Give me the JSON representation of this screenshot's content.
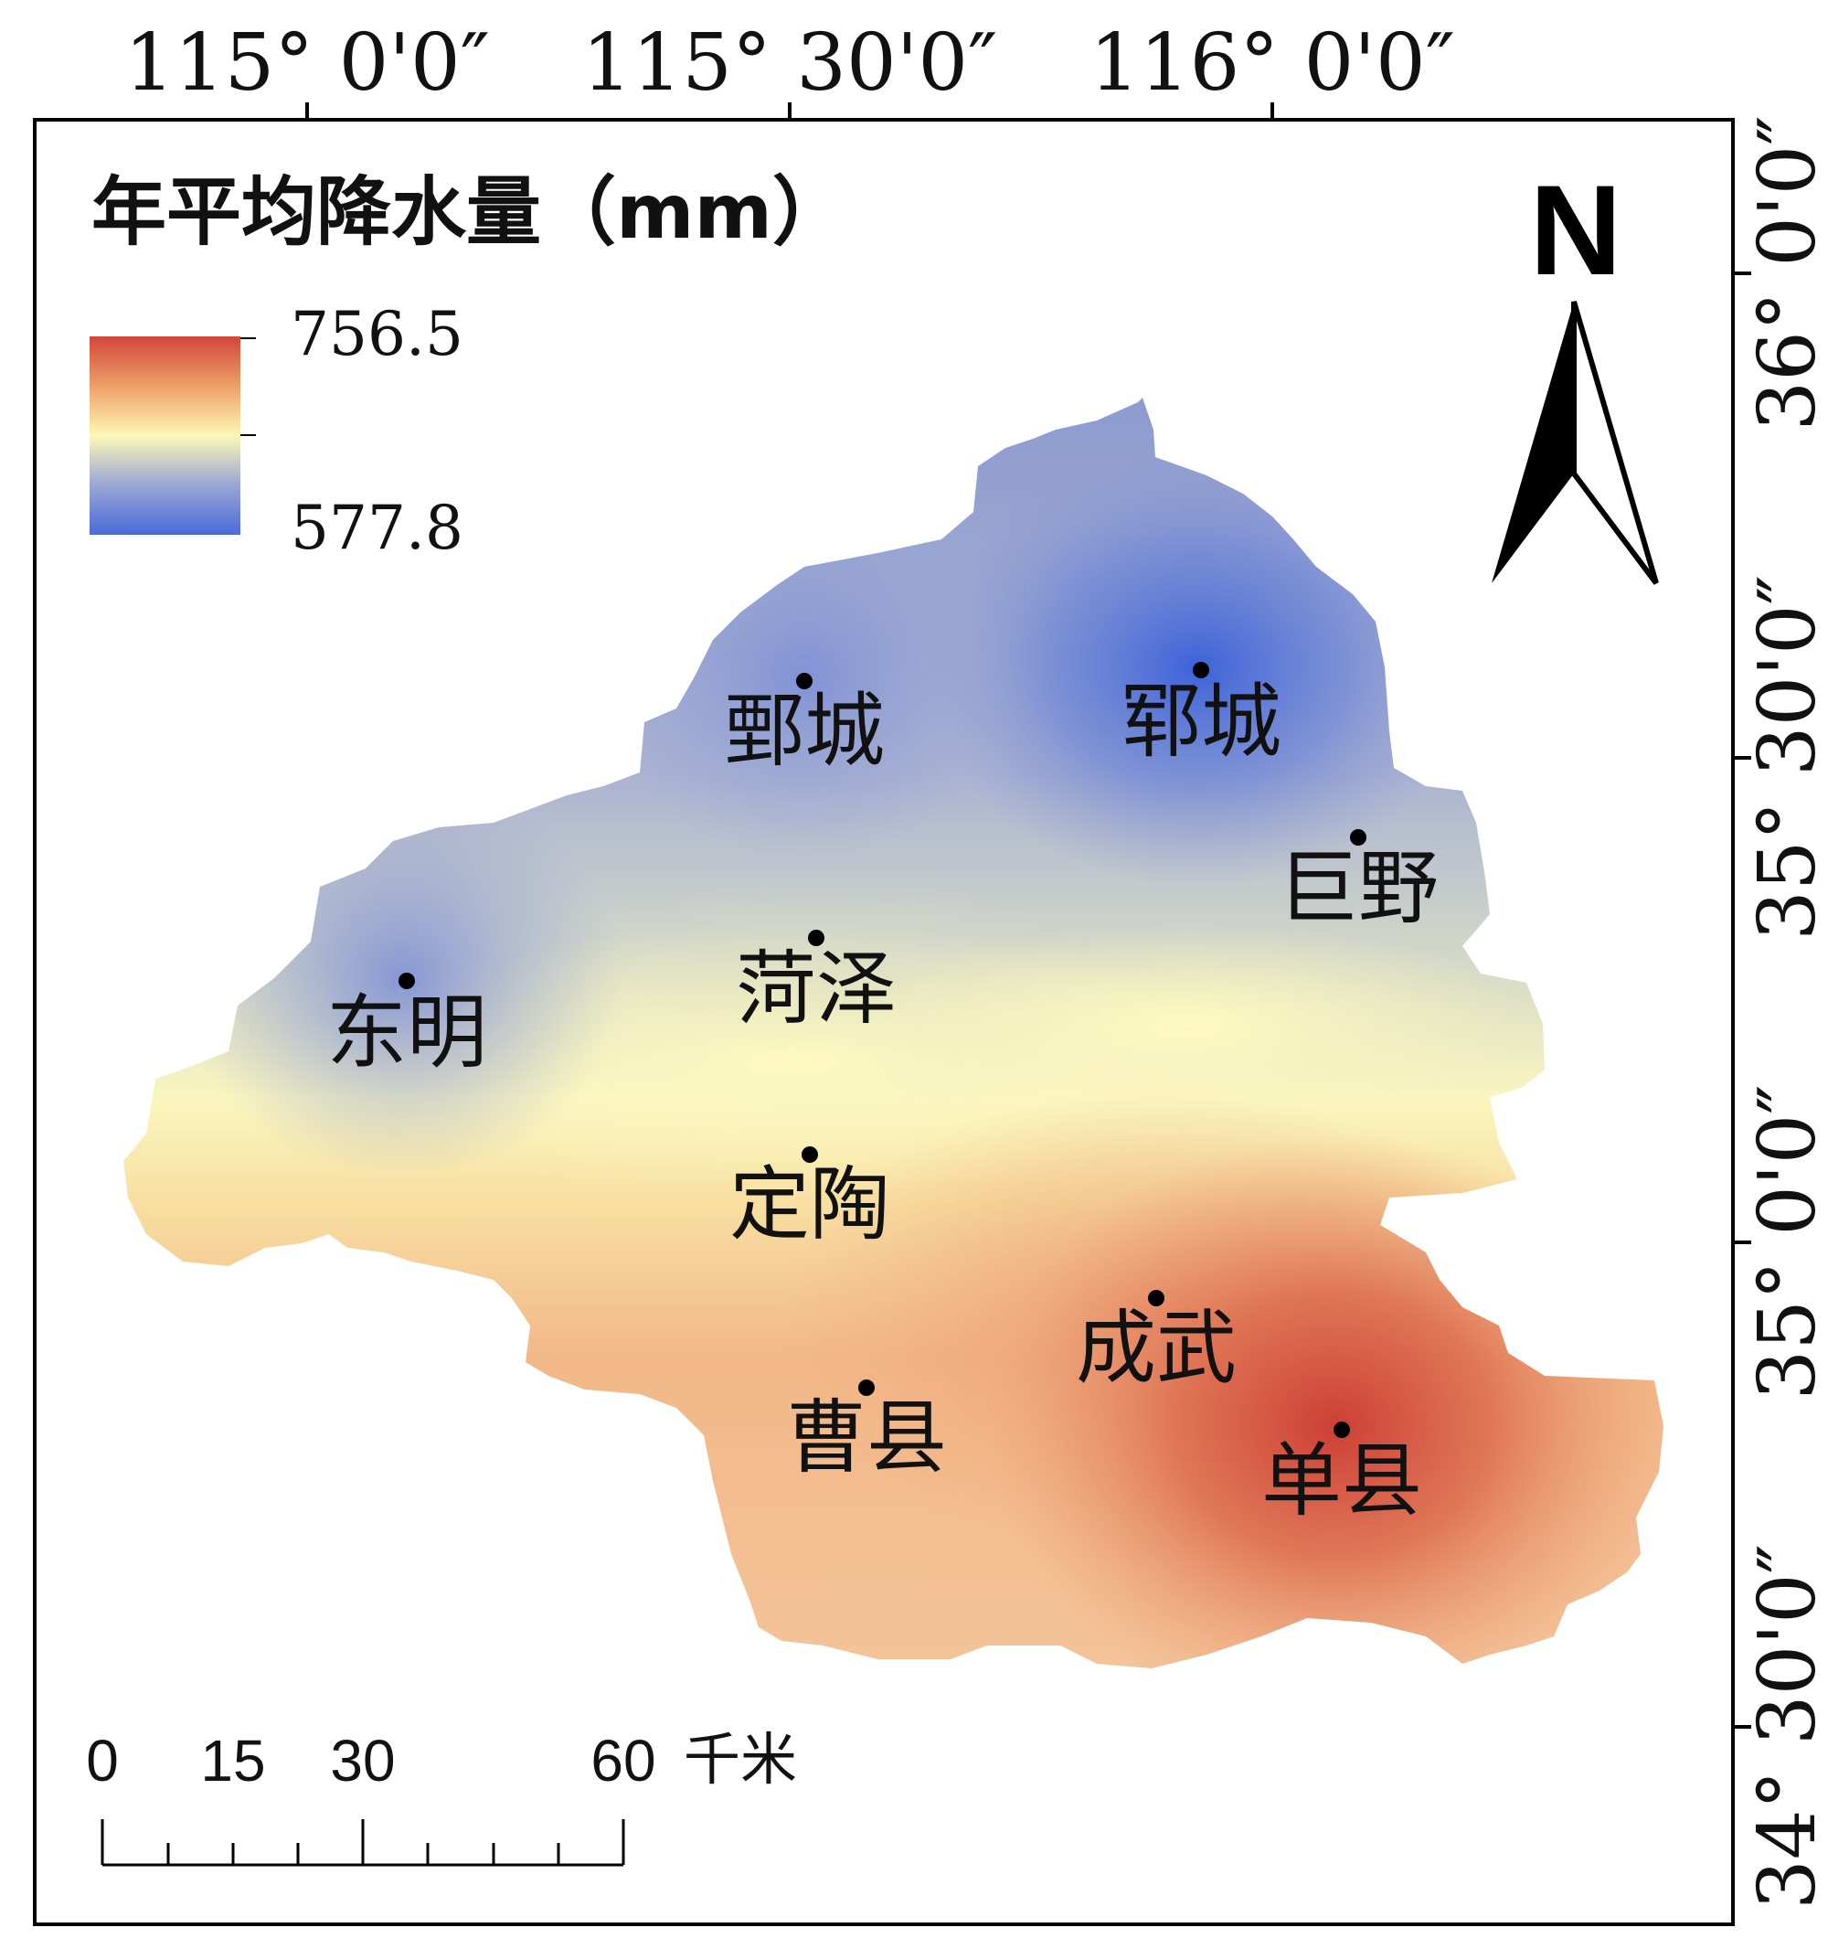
{
  "legend": {
    "title": "年平均降水量（mm）",
    "max_label": "756.5",
    "min_label": "577.8",
    "max_value": 756.5,
    "min_value": 577.8,
    "ramp_colors": [
      "#d2463a",
      "#f0aa6e",
      "#fdf8b8",
      "#9aa6d4",
      "#4a6ad8"
    ]
  },
  "graticule": {
    "top": [
      "115° 0'0″",
      "115° 30'0″",
      "116° 0'0″"
    ],
    "right": [
      "36° 0'0″",
      "35° 30'0″",
      "35° 0'0″",
      "34° 30'0″"
    ]
  },
  "north_arrow": {
    "label": "N"
  },
  "scale_bar": {
    "ticks": [
      "0",
      "15",
      "30",
      "60"
    ],
    "unit": "千米"
  },
  "cities": [
    {
      "name": "鄄城"
    },
    {
      "name": "郓城"
    },
    {
      "name": "巨野"
    },
    {
      "name": "菏泽"
    },
    {
      "name": "东明"
    },
    {
      "name": "定陶"
    },
    {
      "name": "成武"
    },
    {
      "name": "曹县"
    },
    {
      "name": "单县"
    }
  ]
}
